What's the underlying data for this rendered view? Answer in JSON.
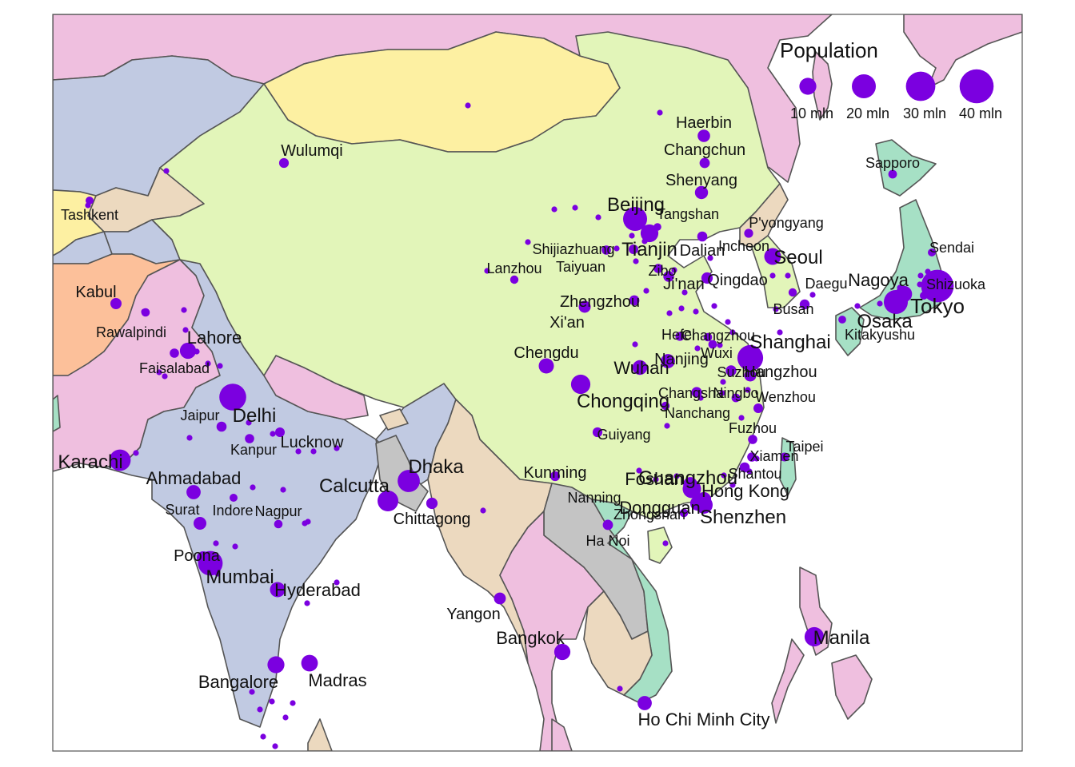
{
  "colors": {
    "background": "#ffffff",
    "border": "#555555",
    "city_fill": "#7b00e0",
    "china": "#e2f5b9",
    "mongolia": "#fdf0a2",
    "russia_pink": "#efbfdf",
    "india_blue": "#c1cae2",
    "afghanistan_orange": "#fcc09a",
    "tan": "#ecd9bf",
    "teal": "#a6e0c5",
    "grey": "#c4c4c4"
  },
  "legend": {
    "title": "Population",
    "items": [
      {
        "label": "10 mln",
        "value": 10
      },
      {
        "label": "20 mln",
        "value": 20
      },
      {
        "label": "30 mln",
        "value": 30
      },
      {
        "label": "40 mln",
        "value": 40
      }
    ]
  },
  "cities": [
    {
      "name": "Tokyo",
      "pop": 37
    },
    {
      "name": "Delhi",
      "pop": 25
    },
    {
      "name": "Shanghai",
      "pop": 23
    },
    {
      "name": "Mumbai",
      "pop": 21
    },
    {
      "name": "Beijing",
      "pop": 20
    },
    {
      "name": "Osaka",
      "pop": 20
    },
    {
      "name": "Dhaka",
      "pop": 17
    },
    {
      "name": "Karachi",
      "pop": 16
    },
    {
      "name": "Calcutta",
      "pop": 15
    },
    {
      "name": "Chongqing",
      "pop": 13
    },
    {
      "name": "Manila",
      "pop": 12.9
    },
    {
      "name": "Tianjin",
      "pop": 11
    },
    {
      "name": "Guangzhou",
      "pop": 11.8
    },
    {
      "name": "Shenzhen",
      "pop": 10.7
    },
    {
      "name": "Seoul",
      "pop": 9.8
    },
    {
      "name": "Bangalore",
      "pop": 10
    },
    {
      "name": "Madras",
      "pop": 9.6
    },
    {
      "name": "Lahore",
      "pop": 9.1
    },
    {
      "name": "Chengdu",
      "pop": 8
    },
    {
      "name": "Bangkok",
      "pop": 9
    },
    {
      "name": "Hyderabad",
      "pop": 8
    },
    {
      "name": "Nagoya",
      "pop": 9.4
    },
    {
      "name": "Ahmadabad",
      "pop": 7
    },
    {
      "name": "Wuhan",
      "pop": 7.5
    },
    {
      "name": "Ho Chi Minh City",
      "pop": 7
    },
    {
      "name": "Hong Kong",
      "pop": 7.3
    },
    {
      "name": "Dongguan",
      "pop": 7.4
    },
    {
      "name": "Foshan",
      "pop": 7
    },
    {
      "name": "Haerbin",
      "pop": 5.4
    },
    {
      "name": "Shenyang",
      "pop": 6
    },
    {
      "name": "Changchun",
      "pop": 3.6
    },
    {
      "name": "Sapporo",
      "pop": 2.6
    },
    {
      "name": "Wulumqi",
      "pop": 3.3
    },
    {
      "name": "Tashkent",
      "pop": 2.2
    },
    {
      "name": "Kabul",
      "pop": 4.4
    },
    {
      "name": "Rawalpindi",
      "pop": 2.5
    },
    {
      "name": "Faisalabad",
      "pop": 3
    },
    {
      "name": "Jaipur",
      "pop": 3.5
    },
    {
      "name": "Kanpur",
      "pop": 3
    },
    {
      "name": "Lucknow",
      "pop": 3.2
    },
    {
      "name": "Surat",
      "pop": 5.6
    },
    {
      "name": "Indore",
      "pop": 2.2
    },
    {
      "name": "Nagpur",
      "pop": 2.5
    },
    {
      "name": "Poona",
      "pop": 5.7
    },
    {
      "name": "Chittagong",
      "pop": 4.5
    },
    {
      "name": "Yangon",
      "pop": 4.8
    },
    {
      "name": "Kunming",
      "pop": 3.3
    },
    {
      "name": "Nanning",
      "pop": 2.7
    },
    {
      "name": "Ha Noi",
      "pop": 3.6
    },
    {
      "name": "Zhongshan",
      "pop": 2.5
    },
    {
      "name": "Guiyang",
      "pop": 3.3
    },
    {
      "name": "Lanzhou",
      "pop": 2.4
    },
    {
      "name": "Xi'an",
      "pop": 5
    },
    {
      "name": "Zhengzhou",
      "pop": 3.6
    },
    {
      "name": "Taiyuan",
      "pop": 3
    },
    {
      "name": "Shijiazhuang",
      "pop": 3.2
    },
    {
      "name": "Tangshan",
      "pop": 2
    },
    {
      "name": "Dalian",
      "pop": 3.5
    },
    {
      "name": "Zibo",
      "pop": 3
    },
    {
      "name": "Ji'nan",
      "pop": 4
    },
    {
      "name": "Qingdao",
      "pop": 4.5
    },
    {
      "name": "Hefei",
      "pop": 2.8
    },
    {
      "name": "Nanjing",
      "pop": 7
    },
    {
      "name": "Changzhou",
      "pop": 2.5
    },
    {
      "name": "Wuxi",
      "pop": 2.6
    },
    {
      "name": "Suzhou",
      "pop": 4
    },
    {
      "name": "Hangzhou",
      "pop": 5
    },
    {
      "name": "Ningbo",
      "pop": 2.6
    },
    {
      "name": "Changsha",
      "pop": 3.9
    },
    {
      "name": "Nanchang",
      "pop": 2.4
    },
    {
      "name": "Wenzhou",
      "pop": 3.2
    },
    {
      "name": "Fuzhou",
      "pop": 3
    },
    {
      "name": "Xiamen",
      "pop": 3
    },
    {
      "name": "Shantou",
      "pop": 3.5
    },
    {
      "name": "Taipei",
      "pop": 2.7
    },
    {
      "name": "P'yongyang",
      "pop": 2.8
    },
    {
      "name": "Incheon",
      "pop": 2.6
    },
    {
      "name": "Daegu",
      "pop": 2.4
    },
    {
      "name": "Busan",
      "pop": 3.4
    },
    {
      "name": "Kitakyushu",
      "pop": 2.1
    },
    {
      "name": "Shizuoka",
      "pop": 2.2
    },
    {
      "name": "Sendai",
      "pop": 2.2
    }
  ]
}
